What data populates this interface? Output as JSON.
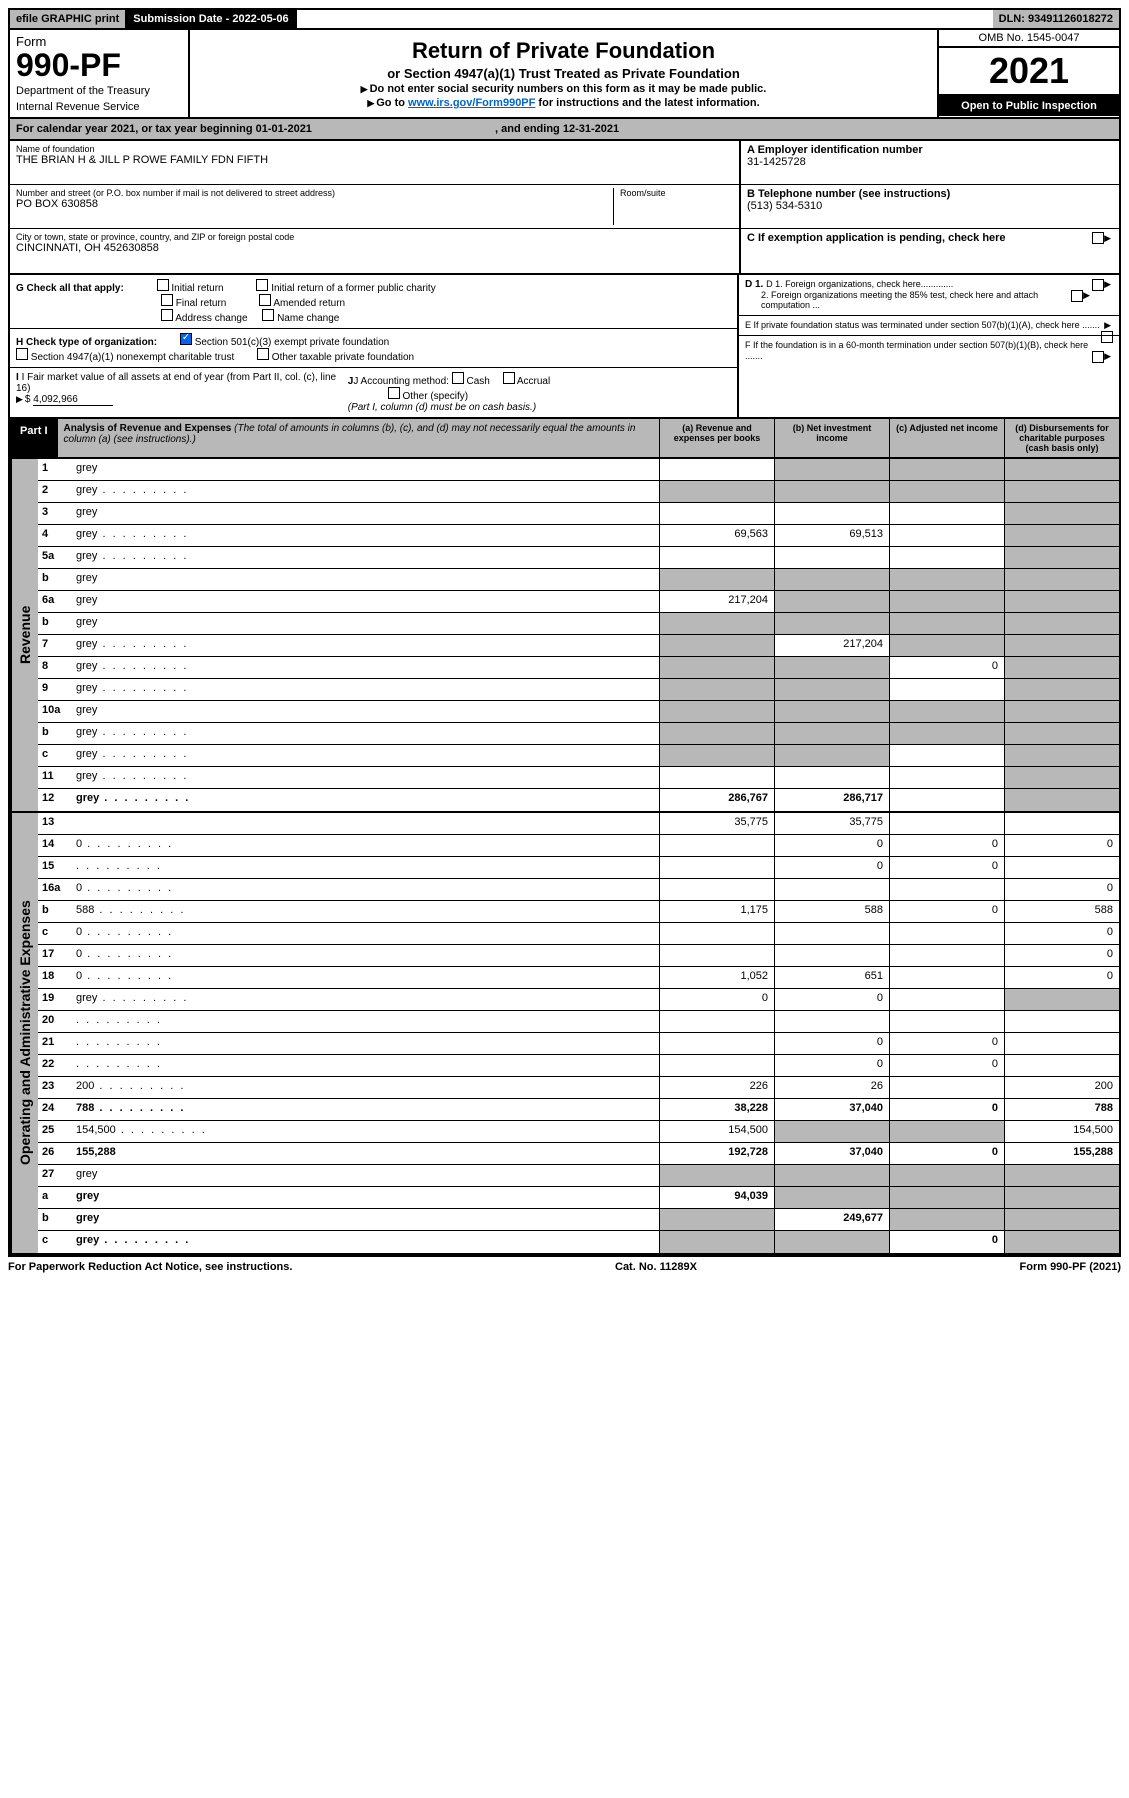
{
  "topbar": {
    "efile": "efile GRAPHIC print",
    "subdate_label": "Submission Date - ",
    "subdate": "2022-05-06",
    "dln_label": "DLN: ",
    "dln": "93491126018272"
  },
  "header": {
    "form_label": "Form",
    "form_num": "990-PF",
    "dept1": "Department of the Treasury",
    "dept2": "Internal Revenue Service",
    "title": "Return of Private Foundation",
    "subtitle": "or Section 4947(a)(1) Trust Treated as Private Foundation",
    "note1": "Do not enter social security numbers on this form as it may be made public.",
    "note2_pre": "Go to ",
    "note2_link": "www.irs.gov/Form990PF",
    "note2_post": " for instructions and the latest information.",
    "omb": "OMB No. 1545-0047",
    "year": "2021",
    "open": "Open to Public Inspection"
  },
  "calendar": {
    "text1": "For calendar year 2021, or tax year beginning ",
    "begin": "01-01-2021",
    "text2": ", and ending ",
    "end": "12-31-2021"
  },
  "entity": {
    "name_label": "Name of foundation",
    "name": "THE BRIAN H & JILL P ROWE FAMILY FDN FIFTH",
    "addr_label": "Number and street (or P.O. box number if mail is not delivered to street address)",
    "addr": "PO BOX 630858",
    "room_label": "Room/suite",
    "city_label": "City or town, state or province, country, and ZIP or foreign postal code",
    "city": "CINCINNATI, OH  452630858",
    "ein_label": "A Employer identification number",
    "ein": "31-1425728",
    "phone_label": "B Telephone number (see instructions)",
    "phone": "(513) 534-5310",
    "c_label": "C If exemption application is pending, check here"
  },
  "checks": {
    "g_label": "G Check all that apply:",
    "g_items": [
      "Initial return",
      "Initial return of a former public charity",
      "Final return",
      "Amended return",
      "Address change",
      "Name change"
    ],
    "h_label": "H Check type of organization:",
    "h_501c3": "Section 501(c)(3) exempt private foundation",
    "h_4947": "Section 4947(a)(1) nonexempt charitable trust",
    "h_other": "Other taxable private foundation",
    "i_label": "I Fair market value of all assets at end of year (from Part II, col. (c), line 16)",
    "i_val": "4,092,966",
    "j_label": "J Accounting method:",
    "j_cash": "Cash",
    "j_accrual": "Accrual",
    "j_other": "Other (specify)",
    "j_note": "(Part I, column (d) must be on cash basis.)",
    "d1": "D 1. Foreign organizations, check here.............",
    "d2": "2. Foreign organizations meeting the 85% test, check here and attach computation ...",
    "e": "E  If private foundation status was terminated under section 507(b)(1)(A), check here .......",
    "f": "F  If the foundation is in a 60-month termination under section 507(b)(1)(B), check here ......."
  },
  "part1": {
    "label": "Part I",
    "title": "Analysis of Revenue and Expenses",
    "note": "(The total of amounts in columns (b), (c), and (d) may not necessarily equal the amounts in column (a) (see instructions).)",
    "cols": {
      "a": "(a) Revenue and expenses per books",
      "b": "(b) Net investment income",
      "c": "(c) Adjusted net income",
      "d": "(d) Disbursements for charitable purposes (cash basis only)"
    }
  },
  "revenue_label": "Revenue",
  "expenses_label": "Operating and Administrative Expenses",
  "rows": [
    {
      "n": "1",
      "d": "grey",
      "a": "",
      "b": "grey",
      "c": "grey"
    },
    {
      "n": "2",
      "d": "grey",
      "dotted": true,
      "a": "grey",
      "b": "grey",
      "c": "grey"
    },
    {
      "n": "3",
      "d": "grey",
      "a": "",
      "b": "",
      "c": ""
    },
    {
      "n": "4",
      "d": "grey",
      "dotted": true,
      "a": "69,563",
      "b": "69,513",
      "c": ""
    },
    {
      "n": "5a",
      "d": "grey",
      "dotted": true,
      "a": "",
      "b": "",
      "c": ""
    },
    {
      "n": "b",
      "d": "grey",
      "a": "grey",
      "b": "grey",
      "c": "grey"
    },
    {
      "n": "6a",
      "d": "grey",
      "a": "217,204",
      "b": "grey",
      "c": "grey"
    },
    {
      "n": "b",
      "d": "grey",
      "a": "grey",
      "b": "grey",
      "c": "grey"
    },
    {
      "n": "7",
      "d": "grey",
      "dotted": true,
      "a": "grey",
      "b": "217,204",
      "c": "grey"
    },
    {
      "n": "8",
      "d": "grey",
      "dotted": true,
      "a": "grey",
      "b": "grey",
      "c": "0"
    },
    {
      "n": "9",
      "d": "grey",
      "dotted": true,
      "a": "grey",
      "b": "grey",
      "c": ""
    },
    {
      "n": "10a",
      "d": "grey",
      "a": "grey",
      "b": "grey",
      "c": "grey"
    },
    {
      "n": "b",
      "d": "grey",
      "dotted": true,
      "a": "grey",
      "b": "grey",
      "c": "grey"
    },
    {
      "n": "c",
      "d": "grey",
      "dotted": true,
      "a": "grey",
      "b": "grey",
      "c": ""
    },
    {
      "n": "11",
      "d": "grey",
      "dotted": true,
      "a": "",
      "b": "",
      "c": ""
    },
    {
      "n": "12",
      "d": "grey",
      "dotted": true,
      "bold": true,
      "a": "286,767",
      "b": "286,717",
      "c": ""
    }
  ],
  "exp_rows": [
    {
      "n": "13",
      "d": "",
      "a": "35,775",
      "b": "35,775",
      "c": ""
    },
    {
      "n": "14",
      "d": "0",
      "dotted": true,
      "a": "",
      "b": "0",
      "c": "0"
    },
    {
      "n": "15",
      "d": "",
      "dotted": true,
      "a": "",
      "b": "0",
      "c": "0"
    },
    {
      "n": "16a",
      "d": "0",
      "dotted": true,
      "a": "",
      "b": "",
      "c": ""
    },
    {
      "n": "b",
      "d": "588",
      "dotted": true,
      "a": "1,175",
      "b": "588",
      "c": "0"
    },
    {
      "n": "c",
      "d": "0",
      "dotted": true,
      "a": "",
      "b": "",
      "c": ""
    },
    {
      "n": "17",
      "d": "0",
      "dotted": true,
      "a": "",
      "b": "",
      "c": ""
    },
    {
      "n": "18",
      "d": "0",
      "dotted": true,
      "a": "1,052",
      "b": "651",
      "c": ""
    },
    {
      "n": "19",
      "d": "grey",
      "dotted": true,
      "a": "0",
      "b": "0",
      "c": ""
    },
    {
      "n": "20",
      "d": "",
      "dotted": true,
      "a": "",
      "b": "",
      "c": ""
    },
    {
      "n": "21",
      "d": "",
      "dotted": true,
      "a": "",
      "b": "0",
      "c": "0"
    },
    {
      "n": "22",
      "d": "",
      "dotted": true,
      "a": "",
      "b": "0",
      "c": "0"
    },
    {
      "n": "23",
      "d": "200",
      "dotted": true,
      "a": "226",
      "b": "26",
      "c": ""
    },
    {
      "n": "24",
      "d": "788",
      "dotted": true,
      "bold": true,
      "a": "38,228",
      "b": "37,040",
      "c": "0"
    },
    {
      "n": "25",
      "d": "154,500",
      "dotted": true,
      "a": "154,500",
      "b": "grey",
      "c": "grey"
    },
    {
      "n": "26",
      "d": "155,288",
      "bold": true,
      "a": "192,728",
      "b": "37,040",
      "c": "0"
    },
    {
      "n": "27",
      "d": "grey",
      "a": "grey",
      "b": "grey",
      "c": "grey"
    },
    {
      "n": "a",
      "d": "grey",
      "bold": true,
      "a": "94,039",
      "b": "grey",
      "c": "grey"
    },
    {
      "n": "b",
      "d": "grey",
      "bold": true,
      "a": "grey",
      "b": "249,677",
      "c": "grey"
    },
    {
      "n": "c",
      "d": "grey",
      "dotted": true,
      "bold": true,
      "a": "grey",
      "b": "grey",
      "c": "0"
    }
  ],
  "footer": {
    "left": "For Paperwork Reduction Act Notice, see instructions.",
    "mid": "Cat. No. 11289X",
    "right": "Form 990-PF (2021)"
  },
  "colors": {
    "grey": "#b8b8b8",
    "black": "#000000",
    "link": "#0066cc",
    "check": "#0066ee"
  }
}
